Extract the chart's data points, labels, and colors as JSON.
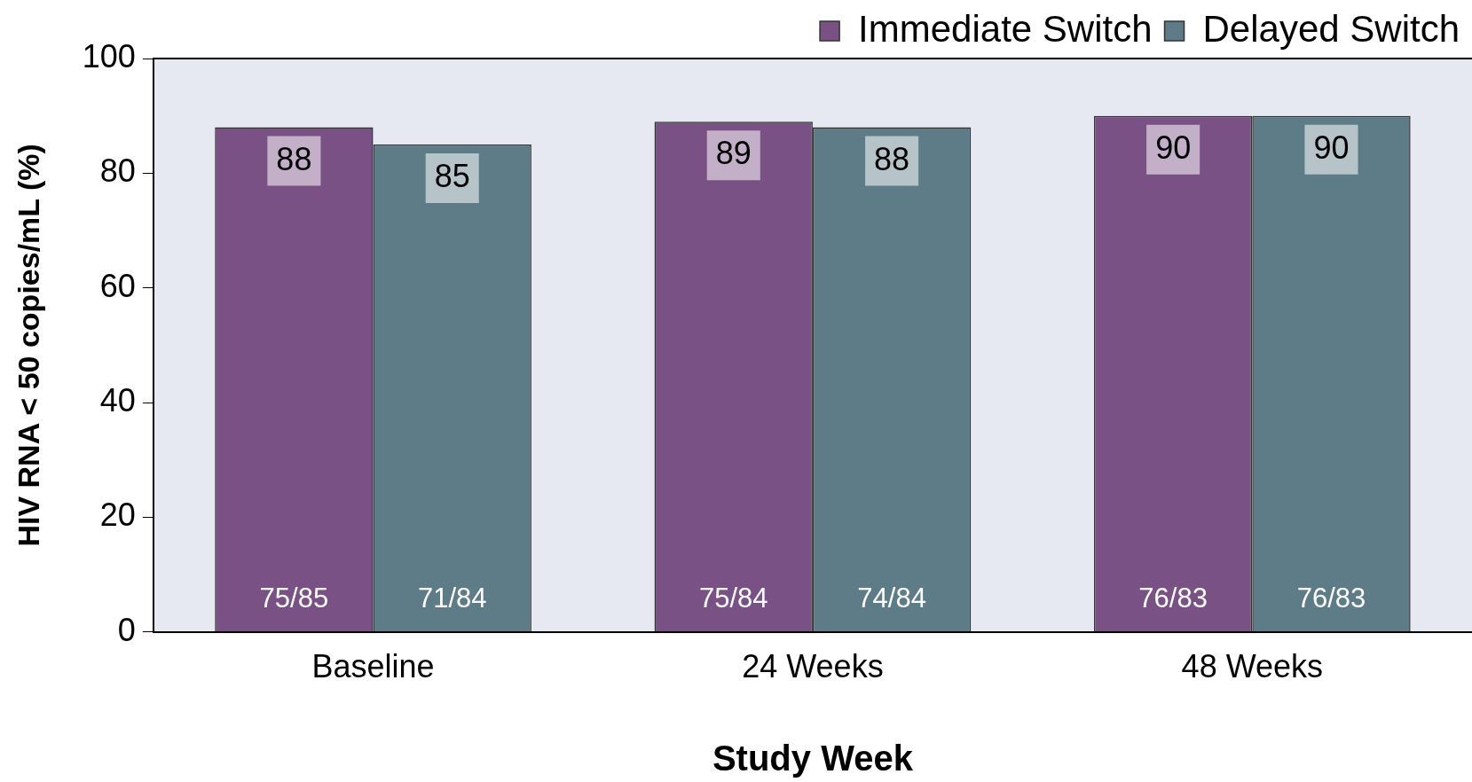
{
  "chart_data": {
    "type": "bar",
    "xlabel": "Study Week",
    "ylabel": "HIV RNA < 50 copies/mL (%)",
    "categories": [
      "Baseline",
      "24 Weeks",
      "48 Weeks"
    ],
    "series": [
      {
        "name": "Immediate Switch",
        "color": "#7a5185",
        "values": [
          88,
          89,
          90
        ]
      },
      {
        "name": "Delayed Switch",
        "color": "#5e7c88",
        "values": [
          85,
          88,
          90
        ]
      }
    ],
    "ylim": [
      0,
      100
    ],
    "yticks": [
      0,
      20,
      40,
      60,
      80,
      100
    ],
    "grid": false,
    "legend": "top right",
    "data_labels": true,
    "annotations": [
      {
        "text": "75/85",
        "x": "Baseline",
        "y": 0
      },
      {
        "text": "71/84",
        "x": "Baseline",
        "y": 0
      },
      {
        "text": "75/84",
        "x": "24 Weeks",
        "y": 0
      },
      {
        "text": "74/84",
        "x": "24 Weeks",
        "y": 0
      },
      {
        "text": "76/83",
        "x": "48 Weeks",
        "y": 0
      },
      {
        "text": "76/83",
        "x": "48 Weeks",
        "y": 0
      }
    ]
  }
}
